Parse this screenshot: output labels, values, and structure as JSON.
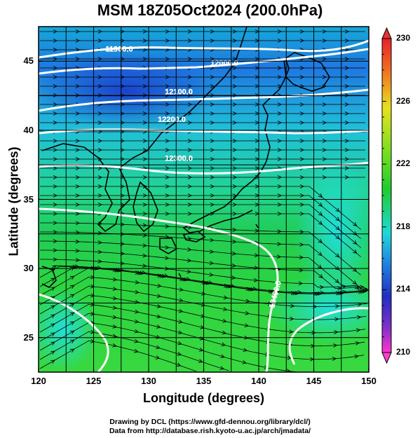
{
  "chart_data": {
    "type": "heatmap",
    "title": "MSM 18Z05Oct2024 (200.0hPa)",
    "xlabel": "Longitude (degrees)",
    "ylabel": "Latitude  (degrees)",
    "xlim": [
      120,
      150
    ],
    "ylim": [
      22.5,
      47.5
    ],
    "xticks": [
      "120",
      "125",
      "130",
      "135",
      "140",
      "145",
      "150"
    ],
    "yticks": [
      "25",
      "30",
      "35",
      "40",
      "45"
    ],
    "colorbar": {
      "range": [
        210,
        230
      ],
      "ticks": [
        "230",
        "226",
        "222",
        "218",
        "214",
        "210"
      ],
      "unit": ""
    },
    "contours": [
      {
        "label": "11900.0",
        "lat": 45.9
      },
      {
        "label": "12000.0",
        "lat": 44.9
      },
      {
        "label": "12100.0",
        "lat": 42.8
      },
      {
        "label": "12200.0",
        "lat": 40.8
      },
      {
        "label": "12300.0",
        "lat": 38.0
      },
      {
        "label": "12400.0",
        "lat": 28.5
      }
    ],
    "field": "temperature with wind streamlines",
    "grid": true
  },
  "credits": {
    "line1": "Drawing by DCL (https://www.gfd-dennou.org/library/dcl/)",
    "line2": "Data from http://database.rish.kyoto-u.ac.jp/arch/jmadata/"
  },
  "colors": {
    "low": "#ff33cc",
    "cold": "#1a3acc",
    "mid": "#20d8d8",
    "warm": "#20cc40",
    "high": "#cc2020"
  }
}
